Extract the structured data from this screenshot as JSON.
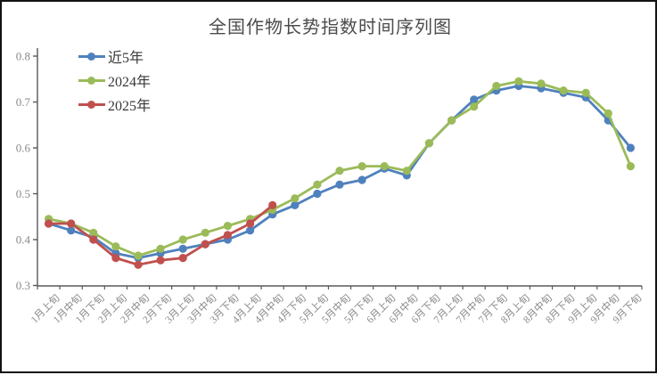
{
  "chart_data": {
    "type": "line",
    "title": "全国作物长势指数时间序列图",
    "categories": [
      "1月上旬",
      "1月中旬",
      "1月下旬",
      "2月上旬",
      "2月中旬",
      "2月下旬",
      "3月上旬",
      "3月中旬",
      "3月下旬",
      "4月上旬",
      "4月中旬",
      "4月下旬",
      "5月上旬",
      "5月中旬",
      "5月下旬",
      "6月上旬",
      "6月中旬",
      "6月下旬",
      "7月上旬",
      "7月中旬",
      "7月下旬",
      "8月上旬",
      "8月中旬",
      "8月下旬",
      "9月上旬",
      "9月中旬",
      "9月下旬"
    ],
    "series": [
      {
        "name": "近5年",
        "color": "#4f81bd",
        "values": [
          0.435,
          0.42,
          0.405,
          0.37,
          0.36,
          0.37,
          0.38,
          0.39,
          0.4,
          0.42,
          0.455,
          0.475,
          0.5,
          0.52,
          0.53,
          0.555,
          0.54,
          0.61,
          0.66,
          0.705,
          0.725,
          0.735,
          0.73,
          0.72,
          0.71,
          0.66,
          0.6
        ]
      },
      {
        "name": "2024年",
        "color": "#9bbb59",
        "values": [
          0.445,
          0.435,
          0.415,
          0.385,
          0.365,
          0.38,
          0.4,
          0.415,
          0.43,
          0.445,
          0.465,
          0.49,
          0.52,
          0.55,
          0.56,
          0.56,
          0.55,
          0.61,
          0.66,
          0.69,
          0.735,
          0.745,
          0.74,
          0.725,
          0.72,
          0.675,
          0.56
        ]
      },
      {
        "name": "2025年",
        "color": "#c0504d",
        "values": [
          0.435,
          0.435,
          0.4,
          0.36,
          0.345,
          0.355,
          0.36,
          0.39,
          0.41,
          0.435,
          0.475
        ]
      }
    ],
    "ylim": [
      0.3,
      0.8
    ],
    "yticks": [
      0.3,
      0.4,
      0.5,
      0.6,
      0.7,
      0.8
    ],
    "grid": false,
    "legend_position": "top-left",
    "axis_color": "#595959",
    "tick_label_color": "#8a8a8a",
    "background": "#ffffff"
  }
}
